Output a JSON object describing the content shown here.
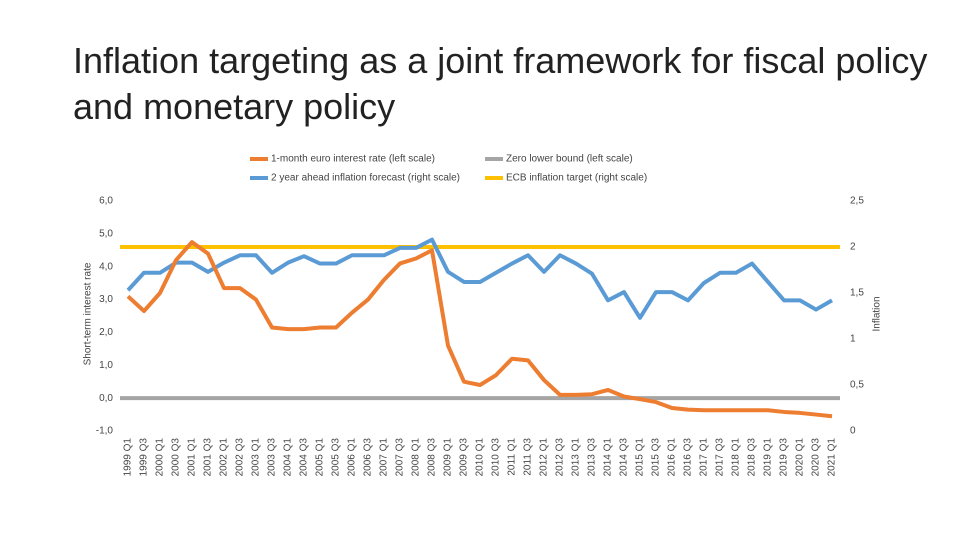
{
  "chart_data": {
    "type": "line",
    "title": "Inflation targeting as a joint framework for fiscal policy and monetary policy",
    "y_label": "Short-term interest rate",
    "y2_label": "Inflation",
    "categories": [
      "1999 Q1",
      "1999 Q3",
      "2000 Q1",
      "2000 Q3",
      "2001 Q1",
      "2001 Q3",
      "2002 Q1",
      "2002 Q3",
      "2003 Q1",
      "2003 Q3",
      "2004 Q1",
      "2004 Q3",
      "2005 Q1",
      "2005 Q3",
      "2006 Q1",
      "2006 Q3",
      "2007 Q1",
      "2007 Q3",
      "2008 Q1",
      "2008 Q3",
      "2009 Q1",
      "2009 Q3",
      "2010 Q1",
      "2010 Q3",
      "2011 Q1",
      "2011 Q3",
      "2012 Q1",
      "2012 Q3",
      "2013 Q1",
      "2013 Q3",
      "2014 Q1",
      "2014 Q3",
      "2015 Q1",
      "2015 Q3",
      "2016 Q1",
      "2016 Q3",
      "2017 Q1",
      "2017 Q3",
      "2018 Q1",
      "2018 Q3",
      "2019 Q1",
      "2019 Q3",
      "2020 Q1",
      "2020 Q3",
      "2021 Q1"
    ],
    "series": [
      {
        "name": "1-month euro interest rate (left scale)",
        "color": "#ed7d31",
        "axis": "y",
        "values": [
          3.1,
          2.65,
          3.2,
          4.2,
          4.75,
          4.4,
          3.35,
          3.35,
          3.0,
          2.15,
          2.1,
          2.1,
          2.15,
          2.15,
          2.6,
          3.0,
          3.6,
          4.1,
          4.25,
          4.5,
          1.6,
          0.5,
          0.4,
          0.7,
          1.2,
          1.15,
          0.55,
          0.1,
          0.1,
          0.12,
          0.25,
          0.05,
          -0.03,
          -0.12,
          -0.3,
          -0.35,
          -0.37,
          -0.37,
          -0.37,
          -0.37,
          -0.37,
          -0.42,
          -0.45,
          -0.5,
          -0.55
        ]
      },
      {
        "name": "Zero lower bound (left scale)",
        "color": "#a5a5a5",
        "axis": "y",
        "value": 0
      },
      {
        "name": "2 year ahead inflation forecast (right scale)",
        "color": "#5b9bd5",
        "axis": "y2",
        "values": [
          1.53,
          1.72,
          1.72,
          1.83,
          1.83,
          1.73,
          1.83,
          1.91,
          1.91,
          1.72,
          1.83,
          1.9,
          1.82,
          1.82,
          1.91,
          1.91,
          1.91,
          1.99,
          1.99,
          2.08,
          1.73,
          1.62,
          1.62,
          1.72,
          1.82,
          1.91,
          1.73,
          1.91,
          1.82,
          1.71,
          1.42,
          1.51,
          1.23,
          1.51,
          1.51,
          1.42,
          1.61,
          1.72,
          1.72,
          1.82,
          1.62,
          1.42,
          1.42,
          1.32,
          1.42
        ]
      },
      {
        "name": "ECB inflation target (right scale)",
        "color": "#ffc000",
        "axis": "y2",
        "value": 2
      }
    ],
    "ylim": [
      -1,
      6
    ],
    "yticks": [
      {
        "value": -1,
        "label": "-1,0"
      },
      {
        "value": 0,
        "label": "0,0"
      },
      {
        "value": 1,
        "label": "1,0"
      },
      {
        "value": 2,
        "label": "2,0"
      },
      {
        "value": 3,
        "label": "3,0"
      },
      {
        "value": 4,
        "label": "4,0"
      },
      {
        "value": 5,
        "label": "5,0"
      },
      {
        "value": 6,
        "label": "6,0"
      }
    ],
    "y2lim": [
      0,
      2.5
    ],
    "y2ticks": [
      0,
      {
        "value": 0.5,
        "label": "0,5"
      },
      1,
      {
        "value": 1.5,
        "label": "1,5"
      },
      2,
      {
        "value": 2.5,
        "label": "2,5"
      }
    ]
  }
}
